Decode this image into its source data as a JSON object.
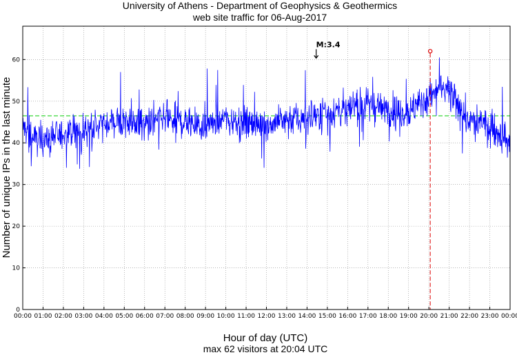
{
  "chart_data": {
    "type": "line",
    "title": "University of Athens - Department of Geophysics & Geothermics",
    "subtitle": "web site traffic for 06-Aug-2017",
    "xlabel": "Hour of day (UTC)",
    "ylabel": "Number of unique IPs in the last minute",
    "footer": "max 62 visitors at 20:04 UTC",
    "xlim": [
      0,
      24
    ],
    "ylim": [
      0,
      68
    ],
    "x_ticks": [
      "00:00",
      "01:00",
      "02:00",
      "03:00",
      "04:00",
      "05:00",
      "06:00",
      "07:00",
      "08:00",
      "09:00",
      "10:00",
      "11:00",
      "12:00",
      "13:00",
      "14:00",
      "15:00",
      "16:00",
      "17:00",
      "18:00",
      "19:00",
      "20:00",
      "21:00",
      "22:00",
      "23:00",
      "00:00"
    ],
    "y_ticks": [
      "0",
      "10",
      "20",
      "30",
      "40",
      "50",
      "60"
    ],
    "grid": true,
    "series_color": "#0000ff",
    "mean_line": {
      "value": 46.5,
      "color": "#00cc00"
    },
    "max_marker": {
      "x": 20.067,
      "y": 62,
      "color": "#dd0000"
    },
    "annotation": {
      "label": "M:3.4",
      "x": 14.45,
      "y": 60
    },
    "profile": {
      "hours": [
        0,
        0.5,
        1,
        2,
        3,
        4,
        5,
        6,
        7,
        8,
        9,
        10,
        11,
        12,
        13,
        14,
        15,
        16,
        17,
        18,
        19,
        20,
        20.5,
        21,
        21.5,
        22,
        23,
        23.5,
        24
      ],
      "levels": [
        44,
        41,
        41,
        42,
        43,
        44.5,
        45,
        44.5,
        45.5,
        45,
        44,
        46,
        44.5,
        44.5,
        45.5,
        46,
        47.5,
        48,
        49,
        48,
        47.5,
        51,
        53,
        52,
        48,
        45,
        44,
        42,
        39
      ]
    }
  }
}
